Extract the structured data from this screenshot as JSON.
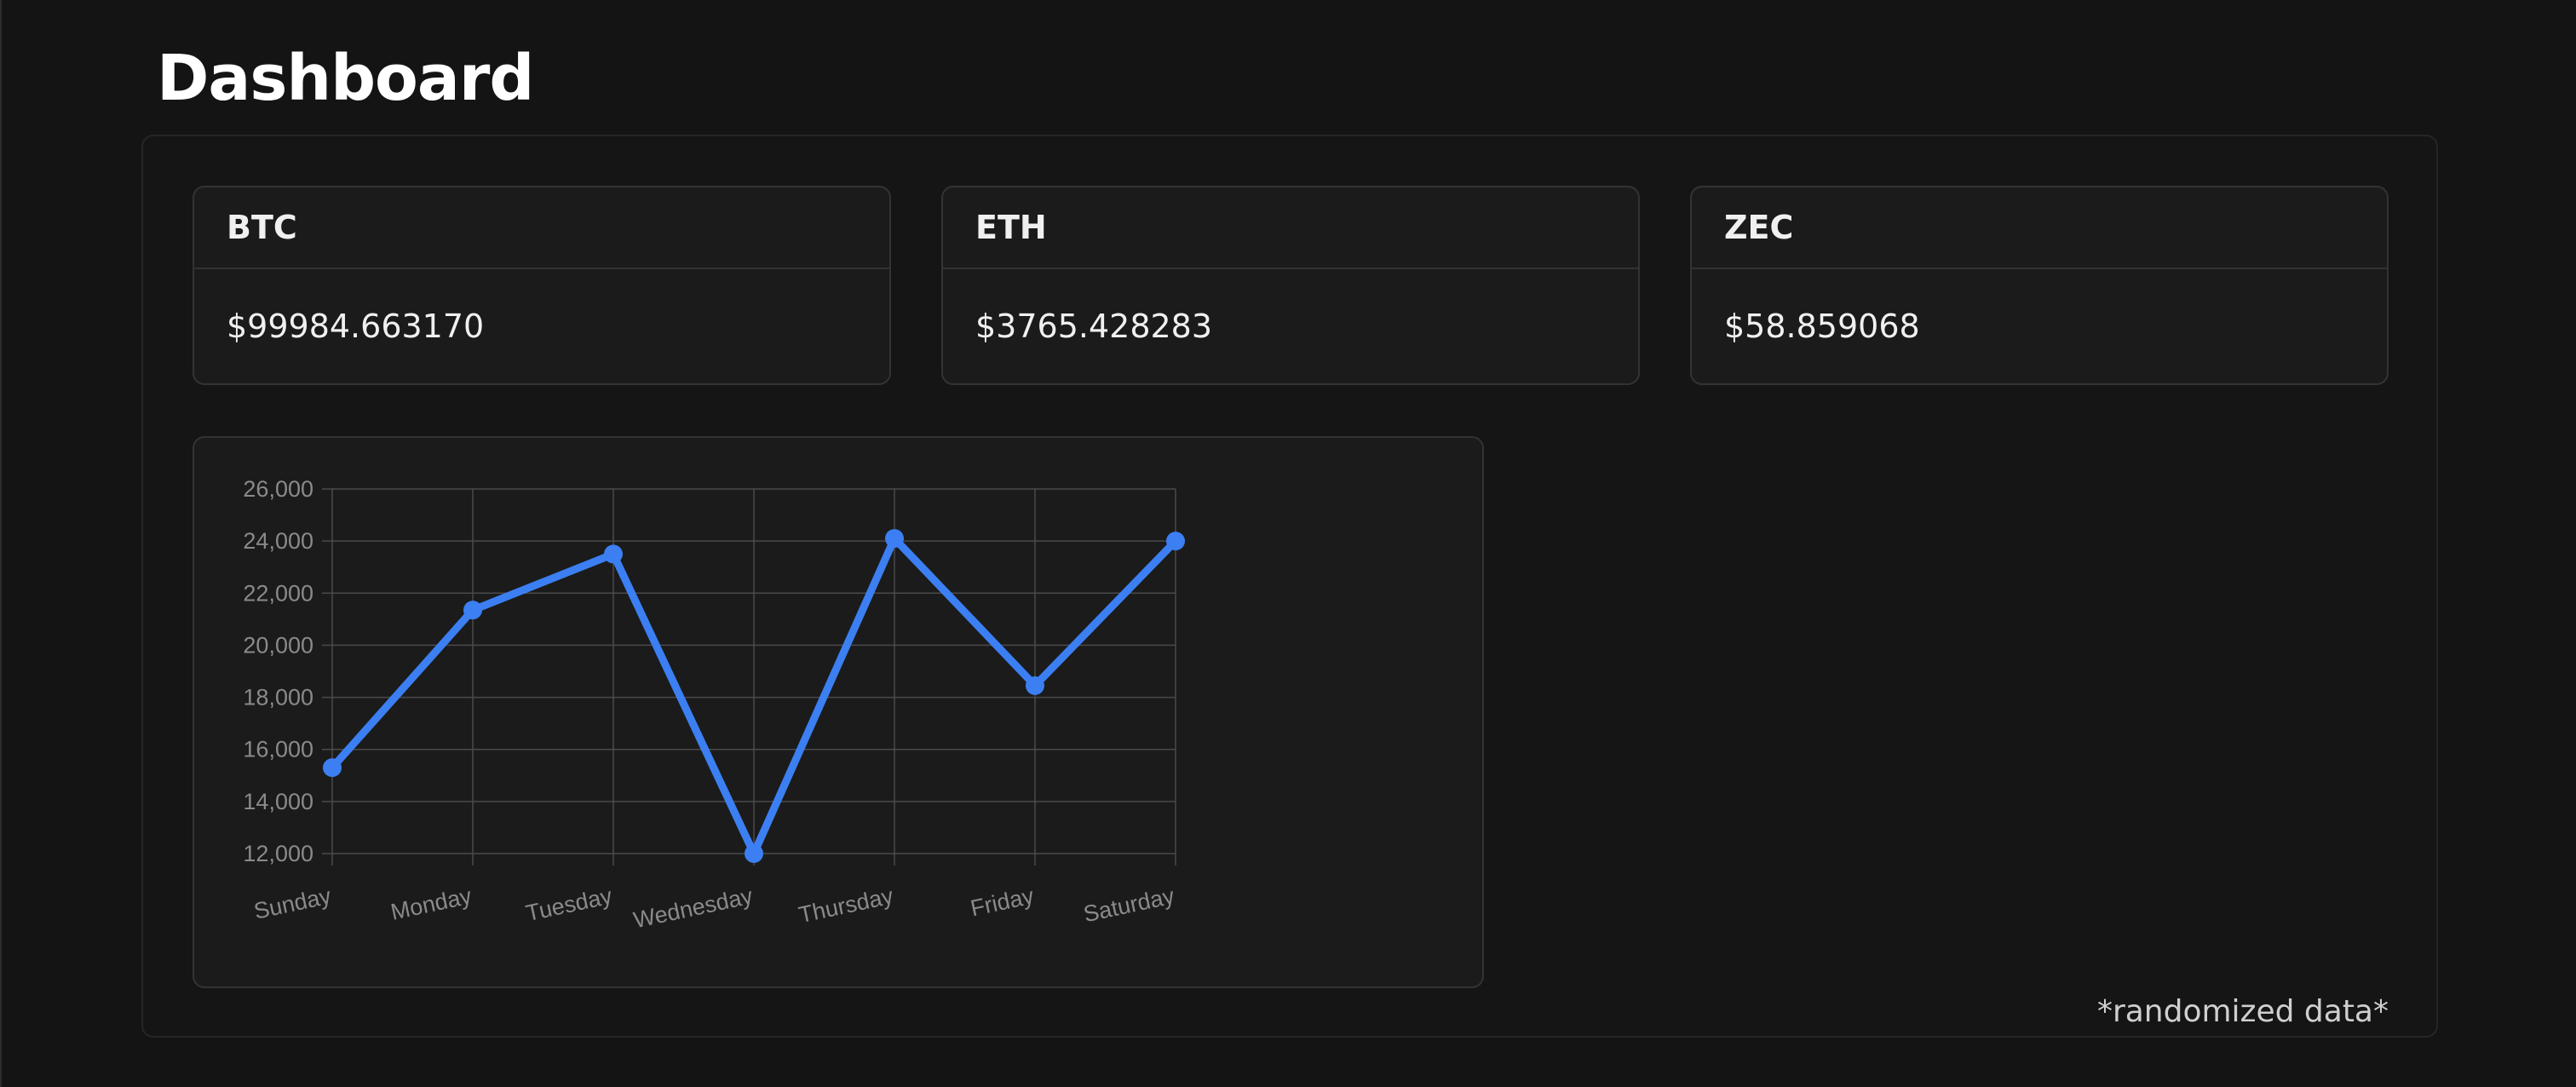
{
  "page": {
    "title": "Dashboard"
  },
  "cards": [
    {
      "symbol": "BTC",
      "price": "$99984.663170"
    },
    {
      "symbol": "ETH",
      "price": "$3765.428283"
    },
    {
      "symbol": "ZEC",
      "price": "$58.859068"
    }
  ],
  "footnote": "*randomized data*",
  "colors": {
    "background": "#141414",
    "card": "#1b1b1b",
    "line": "#3b7ff2",
    "grid": "#4a4a4a",
    "tick_text": "#8a8a8a"
  },
  "chart_data": {
    "type": "line",
    "categories": [
      "Sunday",
      "Monday",
      "Tuesday",
      "Wednesday",
      "Thursday",
      "Friday",
      "Saturday"
    ],
    "series": [
      {
        "values": [
          15300,
          21350,
          23500,
          12000,
          24100,
          18450,
          24000
        ]
      }
    ],
    "yticks": [
      "26,000",
      "24,000",
      "22,000",
      "20,000",
      "18,000",
      "16,000",
      "14,000",
      "12,000"
    ],
    "ylim": [
      12000,
      26000
    ],
    "grid": true,
    "legend": "none"
  }
}
